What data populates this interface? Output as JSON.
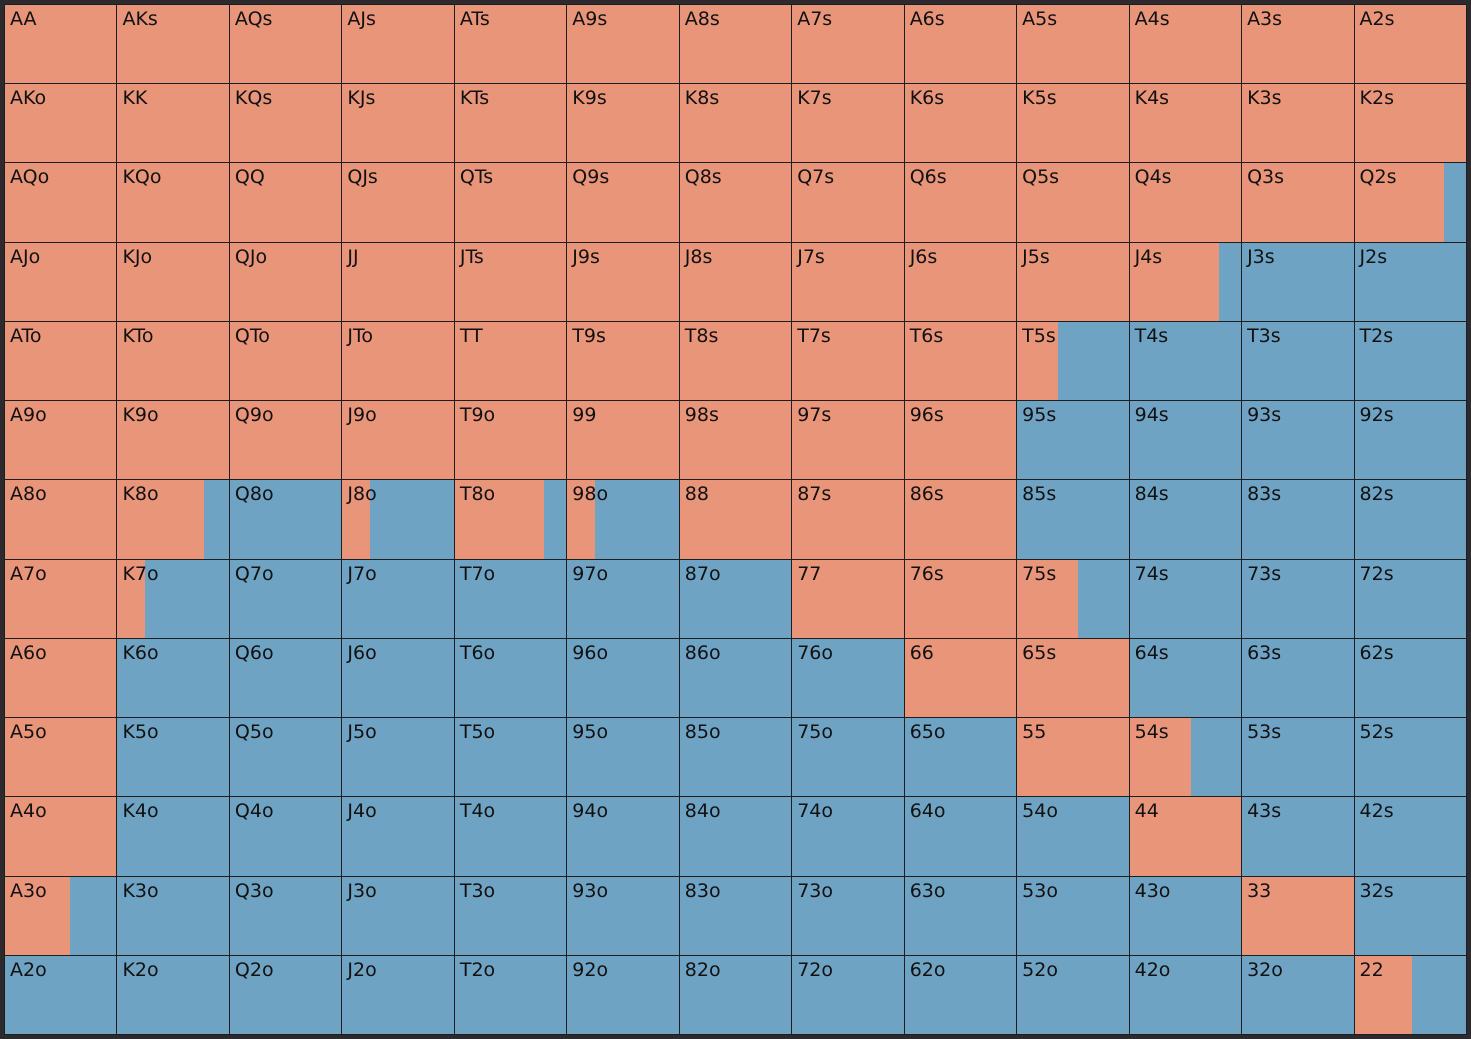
{
  "colors": {
    "raise": "#e9957a",
    "fold": "#6fa3c3"
  },
  "ranks": [
    "A",
    "K",
    "Q",
    "J",
    "T",
    "9",
    "8",
    "7",
    "6",
    "5",
    "4",
    "3",
    "2"
  ],
  "raise_fraction": [
    [
      1,
      1,
      1,
      1,
      1,
      1,
      1,
      1,
      1,
      1,
      1,
      1,
      1
    ],
    [
      1,
      1,
      1,
      1,
      1,
      1,
      1,
      1,
      1,
      1,
      1,
      1,
      1
    ],
    [
      1,
      1,
      1,
      1,
      1,
      1,
      1,
      1,
      1,
      1,
      1,
      1,
      0.8
    ],
    [
      1,
      1,
      1,
      1,
      1,
      1,
      1,
      1,
      1,
      1,
      0.8,
      0,
      0
    ],
    [
      1,
      1,
      1,
      1,
      1,
      1,
      1,
      1,
      1,
      0.37,
      0,
      0,
      0
    ],
    [
      1,
      1,
      1,
      1,
      1,
      1,
      1,
      1,
      1,
      0,
      0,
      0,
      0
    ],
    [
      1,
      0.78,
      0,
      0.25,
      0.8,
      0.25,
      1,
      1,
      1,
      0,
      0,
      0,
      0
    ],
    [
      1,
      0.25,
      0,
      0,
      0,
      0,
      0,
      1,
      1,
      0.55,
      0,
      0,
      0
    ],
    [
      1,
      0,
      0,
      0,
      0,
      0,
      0,
      0,
      1,
      1,
      0,
      0,
      0
    ],
    [
      1,
      0,
      0,
      0,
      0,
      0,
      0,
      0,
      0,
      1,
      0.55,
      0,
      0
    ],
    [
      1,
      0,
      0,
      0,
      0,
      0,
      0,
      0,
      0,
      0,
      1,
      0,
      0
    ],
    [
      0.58,
      0,
      0,
      0,
      0,
      0,
      0,
      0,
      0,
      0,
      0,
      1,
      0
    ],
    [
      0,
      0,
      0,
      0,
      0,
      0,
      0,
      0,
      0,
      0,
      0,
      0,
      0.52
    ]
  ]
}
